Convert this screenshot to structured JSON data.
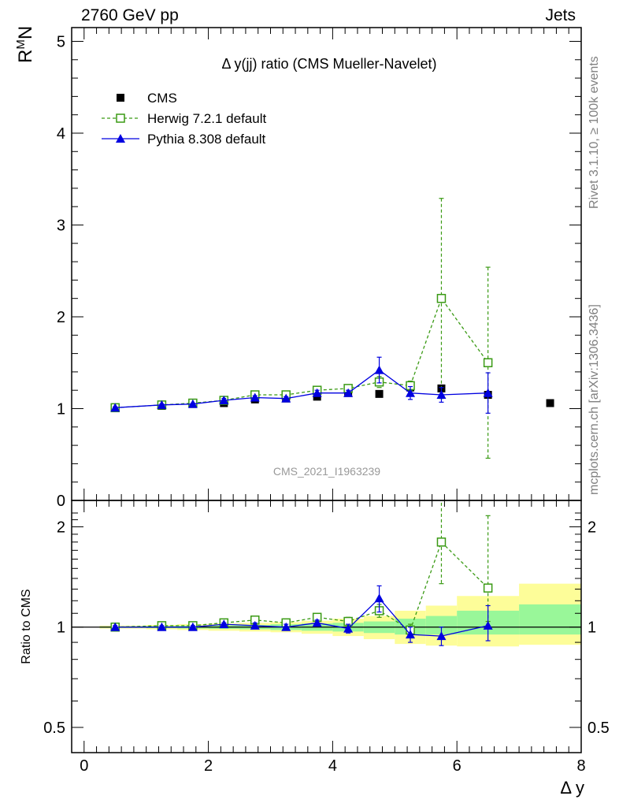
{
  "header": {
    "left": "2760 GeV pp",
    "right": "Jets"
  },
  "side_labels": {
    "top": "Rivet 3.1.10, ≥ 100k events",
    "bottom": "mcplots.cern.ch [arXiv:1306.3436]"
  },
  "watermark": "CMS_2021_I1963239",
  "colors": {
    "data": "#000000",
    "herwig": "#3a9a14",
    "pythia": "#0000e0",
    "band_inner": "#99f799",
    "band_outer": "#fdfd99"
  },
  "chart_data": [
    {
      "type": "scatter",
      "title": "Δ y(jj) ratio (CMS Mueller-Navelet)",
      "xlabel": "Δ y",
      "ylabel": "RᴹN",
      "xlim": [
        -0.2,
        8.0
      ],
      "ylim": [
        0,
        5.15
      ],
      "yticks": [
        0,
        1,
        2,
        3,
        4,
        5
      ],
      "xticks": [
        0,
        2,
        4,
        6,
        8
      ],
      "legend_position": "top-left",
      "series": [
        {
          "name": "CMS",
          "marker": "filled-square",
          "x": [
            0.5,
            1.25,
            1.75,
            2.25,
            2.75,
            3.25,
            3.75,
            4.25,
            4.75,
            5.25,
            5.75,
            6.5,
            7.5
          ],
          "y": [
            1.01,
            1.03,
            1.05,
            1.06,
            1.1,
            1.11,
            1.13,
            1.17,
            1.16,
            1.23,
            1.22,
            1.15,
            1.06
          ]
        },
        {
          "name": "Herwig 7.2.1 default",
          "marker": "open-square",
          "line": "dashed",
          "x": [
            0.5,
            1.25,
            1.75,
            2.25,
            2.75,
            3.25,
            3.75,
            4.25,
            4.75,
            5.25,
            5.75,
            6.5
          ],
          "y": [
            1.01,
            1.04,
            1.06,
            1.09,
            1.15,
            1.15,
            1.2,
            1.22,
            1.29,
            1.25,
            2.2,
            1.5
          ],
          "yerr": [
            0.01,
            0.01,
            0.01,
            0.02,
            0.02,
            0.02,
            0.03,
            0.04,
            0.06,
            0.05,
            1.09,
            1.04
          ]
        },
        {
          "name": "Pythia 8.308 default",
          "marker": "filled-triangle",
          "line": "solid",
          "x": [
            0.5,
            1.25,
            1.75,
            2.25,
            2.75,
            3.25,
            3.75,
            4.25,
            4.75,
            5.25,
            5.75,
            6.5
          ],
          "y": [
            1.01,
            1.04,
            1.05,
            1.09,
            1.12,
            1.11,
            1.17,
            1.17,
            1.42,
            1.17,
            1.15,
            1.17
          ],
          "yerr": [
            0.01,
            0.01,
            0.01,
            0.02,
            0.02,
            0.02,
            0.03,
            0.03,
            0.14,
            0.07,
            0.08,
            0.22
          ]
        }
      ]
    },
    {
      "type": "scatter",
      "title": "",
      "xlabel": "Δ y",
      "ylabel": "Ratio to CMS",
      "scale": "log",
      "xlim": [
        -0.2,
        8.0
      ],
      "ylim": [
        0.42,
        2.4
      ],
      "yticks": [
        0.5,
        1,
        2
      ],
      "xticks": [
        0,
        2,
        4,
        6,
        8
      ],
      "reference_line": 1,
      "bands": {
        "edges": [
          0.25,
          1.0,
          1.5,
          2.0,
          2.5,
          3.0,
          3.5,
          4.0,
          4.5,
          5.0,
          5.5,
          6.0,
          7.0,
          8.0
        ],
        "inner_low": [
          0.995,
          0.993,
          0.99,
          0.988,
          0.985,
          0.98,
          0.975,
          0.97,
          0.96,
          0.95,
          0.95,
          0.95,
          0.95
        ],
        "inner_high": [
          1.005,
          1.007,
          1.01,
          1.012,
          1.015,
          1.02,
          1.025,
          1.03,
          1.04,
          1.06,
          1.08,
          1.12,
          1.17
        ],
        "outer_low": [
          0.99,
          0.985,
          0.98,
          0.975,
          0.97,
          0.965,
          0.955,
          0.94,
          0.92,
          0.89,
          0.88,
          0.875,
          0.885
        ],
        "outer_high": [
          1.01,
          1.015,
          1.02,
          1.025,
          1.03,
          1.035,
          1.045,
          1.06,
          1.08,
          1.12,
          1.16,
          1.24,
          1.35
        ]
      },
      "series": [
        {
          "name": "Herwig 7.2.1 default",
          "marker": "open-square",
          "line": "dashed",
          "x": [
            0.5,
            1.25,
            1.75,
            2.25,
            2.75,
            3.25,
            3.75,
            4.25,
            4.75,
            5.25,
            5.75,
            6.5
          ],
          "y": [
            1.0,
            1.01,
            1.01,
            1.03,
            1.05,
            1.03,
            1.07,
            1.04,
            1.12,
            0.98,
            1.8,
            1.31
          ],
          "yerr_low": [
            0.01,
            0.01,
            0.01,
            0.01,
            0.02,
            0.02,
            0.02,
            0.03,
            0.05,
            0.04,
            0.45,
            0.27
          ],
          "yerr_high": [
            0.01,
            0.01,
            0.01,
            0.01,
            0.02,
            0.02,
            0.02,
            0.03,
            0.05,
            0.04,
            0.75,
            0.85
          ]
        },
        {
          "name": "Pythia 8.308 default",
          "marker": "filled-triangle",
          "line": "solid",
          "x": [
            0.5,
            1.25,
            1.75,
            2.25,
            2.75,
            3.25,
            3.75,
            4.25,
            4.75,
            5.25,
            5.75,
            6.5
          ],
          "y": [
            1.0,
            1.0,
            1.0,
            1.02,
            1.01,
            1.0,
            1.03,
            0.99,
            1.22,
            0.95,
            0.94,
            1.01
          ],
          "yerr_low": [
            0.01,
            0.01,
            0.01,
            0.01,
            0.02,
            0.02,
            0.02,
            0.03,
            0.11,
            0.05,
            0.06,
            0.1
          ],
          "yerr_high": [
            0.01,
            0.01,
            0.01,
            0.01,
            0.02,
            0.02,
            0.02,
            0.03,
            0.11,
            0.05,
            0.06,
            0.15
          ]
        }
      ]
    }
  ]
}
